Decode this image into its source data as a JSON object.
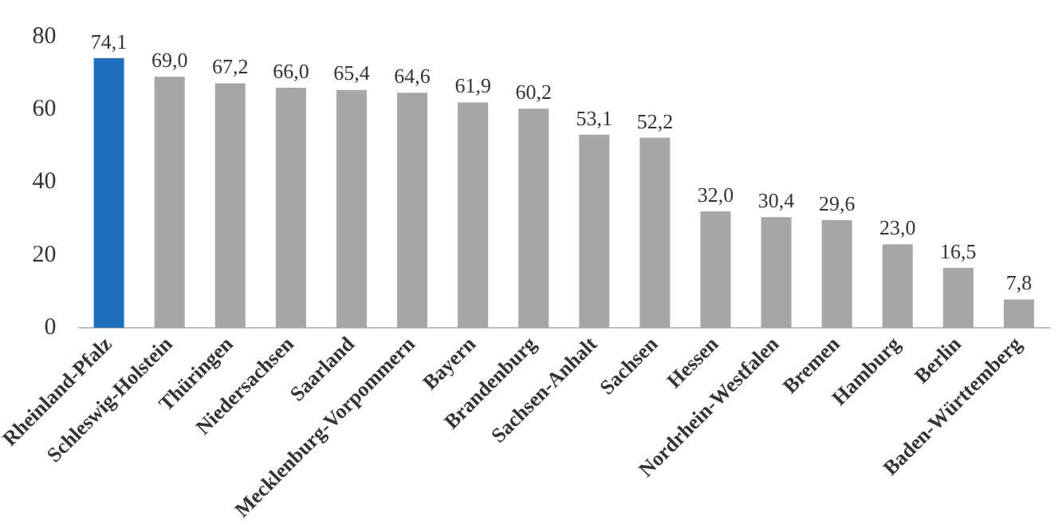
{
  "chart_data": {
    "type": "bar",
    "categories": [
      "Rheinland-Pfalz",
      "Schleswig-Holstein",
      "Thüringen",
      "Niedersachsen",
      "Saarland",
      "Mecklenburg-Vorpommern",
      "Bayern",
      "Brandenburg",
      "Sachsen-Anhalt",
      "Sachsen",
      "Hessen",
      "Nordrhein-Westfalen",
      "Bremen",
      "Hamburg",
      "Berlin",
      "Baden-Württemberg"
    ],
    "values": [
      74.1,
      69.0,
      67.2,
      66.0,
      65.4,
      64.6,
      61.9,
      60.2,
      53.1,
      52.2,
      32.0,
      30.4,
      29.6,
      23.0,
      16.5,
      7.8
    ],
    "colors": [
      "#1f6fbf",
      "#a6a6a6",
      "#a6a6a6",
      "#a6a6a6",
      "#a6a6a6",
      "#a6a6a6",
      "#a6a6a6",
      "#a6a6a6",
      "#a6a6a6",
      "#a6a6a6",
      "#a6a6a6",
      "#a6a6a6",
      "#a6a6a6",
      "#a6a6a6",
      "#a6a6a6",
      "#a6a6a6"
    ],
    "value_labels": [
      "74,1",
      "69,0",
      "67,2",
      "66,0",
      "65,4",
      "64,6",
      "61,9",
      "60,2",
      "53,1",
      "52,2",
      "32,0",
      "30,4",
      "29,6",
      "23,0",
      "16,5",
      "7,8"
    ],
    "ylim": [
      0,
      80
    ],
    "yticks": [
      0,
      20,
      40,
      60,
      80
    ],
    "grid": false,
    "legend": false
  }
}
